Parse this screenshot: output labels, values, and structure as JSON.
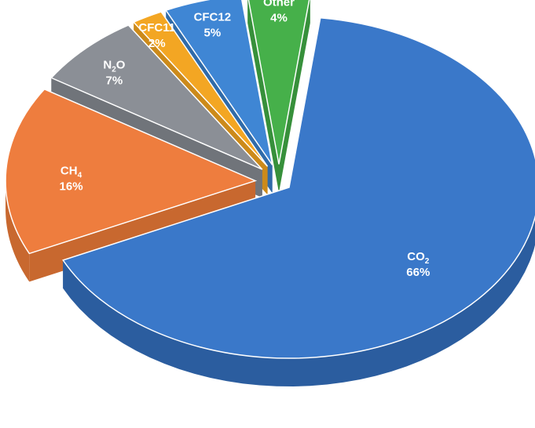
{
  "chart_data": {
    "type": "pie",
    "title": "",
    "slices": [
      {
        "label": "CO2",
        "label_main": "CO",
        "label_sub": "2",
        "label_tail": "",
        "value": 66,
        "value_text": "66%",
        "color": "#3a78c9",
        "side_color": "#2b5d9f"
      },
      {
        "label": "CH4",
        "label_main": "CH",
        "label_sub": "4",
        "label_tail": "",
        "value": 16,
        "value_text": "16%",
        "color": "#ee7d3e",
        "side_color": "#c8682f"
      },
      {
        "label": "N2O",
        "label_main": "N",
        "label_sub": "2",
        "label_tail": "O",
        "value": 7,
        "value_text": "7%",
        "color": "#8b8f96",
        "side_color": "#70747a"
      },
      {
        "label": "CFC11",
        "label_main": "CFC11",
        "label_sub": "",
        "label_tail": "",
        "value": 2,
        "value_text": "2%",
        "color": "#f3a623",
        "side_color": "#cc8a1a"
      },
      {
        "label": "CFC12",
        "label_main": "CFC12",
        "label_sub": "",
        "label_tail": "",
        "value": 5,
        "value_text": "5%",
        "color": "#3f86d4",
        "side_color": "#306ba9"
      },
      {
        "label": "Other",
        "label_main": "Other",
        "label_sub": "",
        "label_tail": "",
        "value": 4,
        "value_text": "4%",
        "color": "#46b04a",
        "side_color": "#37903b"
      }
    ],
    "legend": "none",
    "style": "3d-exploded-pie"
  }
}
